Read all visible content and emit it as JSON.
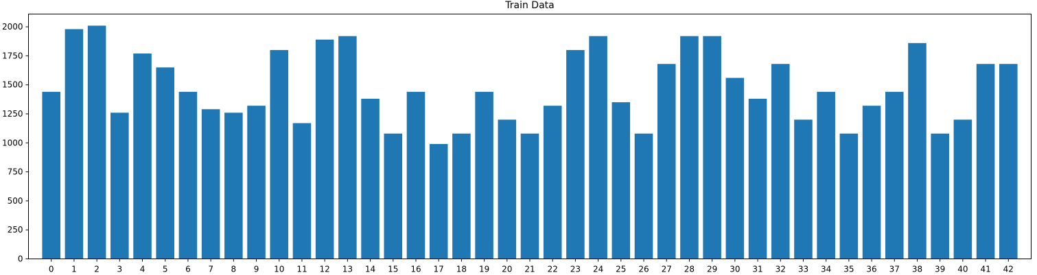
{
  "chart_data": {
    "type": "bar",
    "title": "Train Data",
    "xlabel": "",
    "ylabel": "",
    "categories": [
      "0",
      "1",
      "2",
      "3",
      "4",
      "5",
      "6",
      "7",
      "8",
      "9",
      "10",
      "11",
      "12",
      "13",
      "14",
      "15",
      "16",
      "17",
      "18",
      "19",
      "20",
      "21",
      "22",
      "23",
      "24",
      "25",
      "26",
      "27",
      "28",
      "29",
      "30",
      "31",
      "32",
      "33",
      "34",
      "35",
      "36",
      "37",
      "38",
      "39",
      "40",
      "41",
      "42"
    ],
    "values": [
      1440,
      1980,
      2010,
      1260,
      1770,
      1650,
      1440,
      1290,
      1260,
      1320,
      1800,
      1170,
      1890,
      1920,
      1380,
      1080,
      1440,
      990,
      1080,
      1440,
      1200,
      1080,
      1320,
      1800,
      1920,
      1350,
      1080,
      1680,
      1920,
      1920,
      1560,
      1380,
      1680,
      1200,
      1440,
      1080,
      1320,
      1440,
      1860,
      1080,
      1200,
      1680,
      1680
    ],
    "yticks": [
      0,
      250,
      500,
      750,
      1000,
      1250,
      1500,
      1750,
      2000
    ],
    "ylim": [
      0,
      2110
    ],
    "xlim": [
      -1.0,
      43.0
    ],
    "grid": false,
    "legend": "none",
    "bar_color": "#1f77b4"
  }
}
